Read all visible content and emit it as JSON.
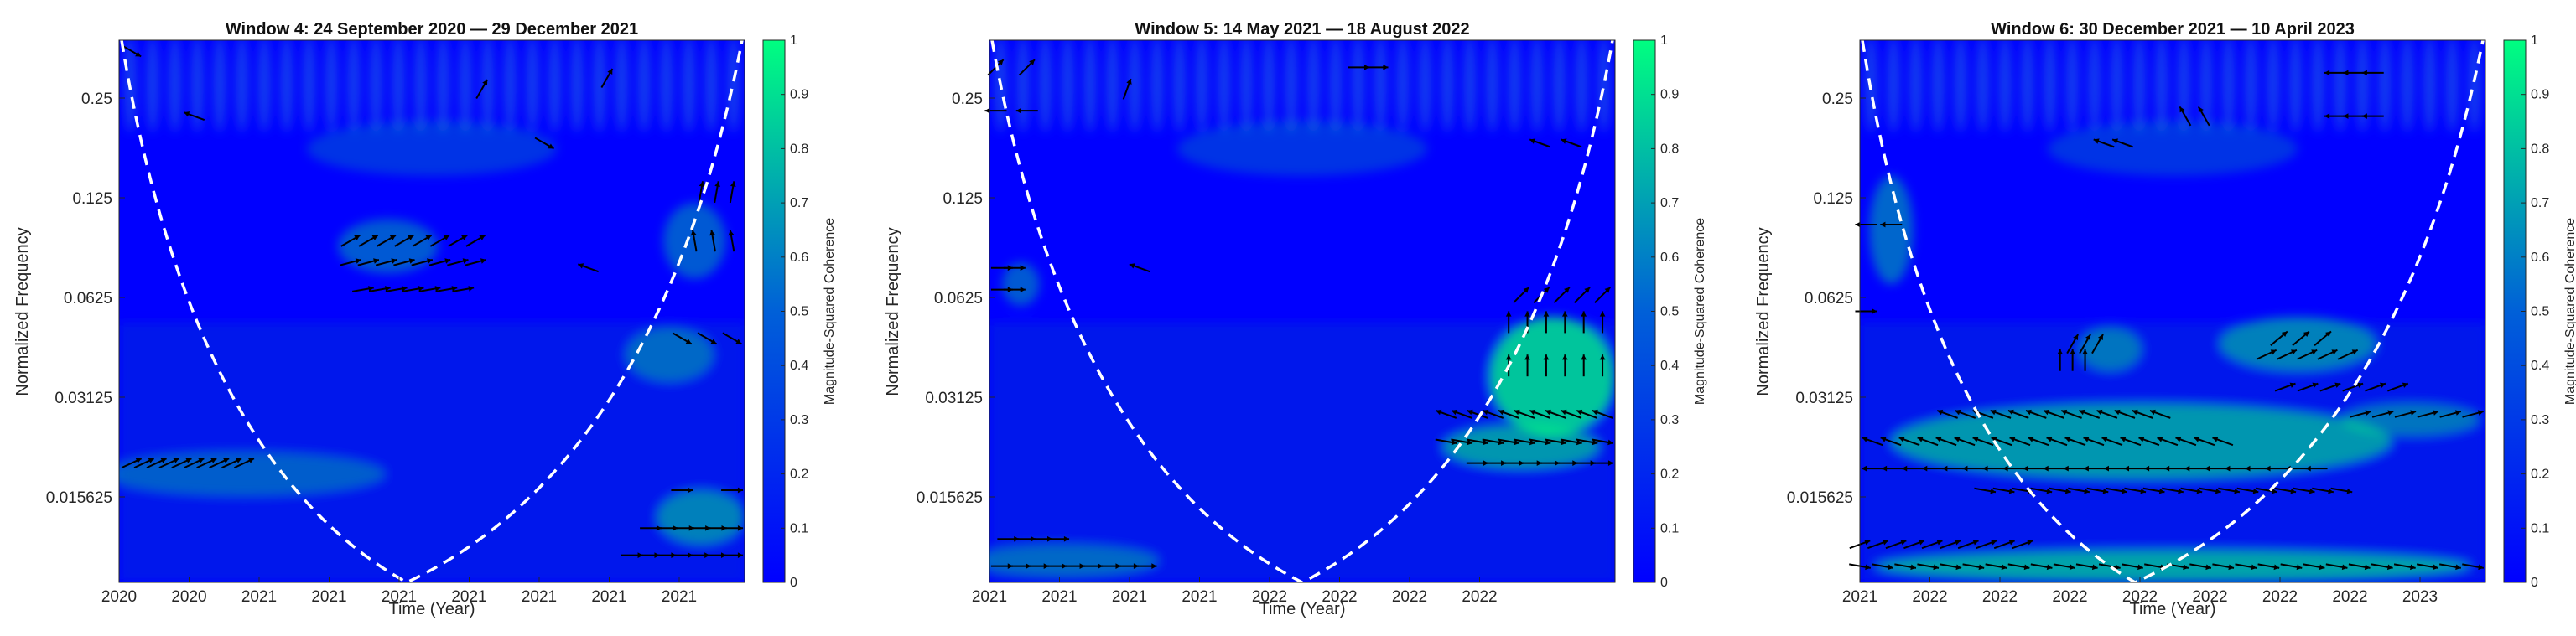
{
  "colors": {
    "low": "#0000ff",
    "high": "#00ff80",
    "coi": "#ffffff",
    "arrow": "#000000"
  },
  "chart_data": [
    {
      "type": "heatmap",
      "title": "Window 4: 24 September 2020 — 29 December 2021",
      "xlabel": "Time (Year)",
      "ylabel": "Normalized Frequency",
      "xticks": [
        "2020",
        "2020",
        "2021",
        "2021",
        "2021",
        "2021",
        "2021",
        "2021",
        "2021"
      ],
      "yticks": [
        "0.25",
        "0.125",
        "0.0625",
        "0.03125",
        "0.015625"
      ],
      "colorbar": {
        "label": "Magnitude-Squared Coherence",
        "ticks": [
          "0",
          "0.1",
          "0.2",
          "0.3",
          "0.4",
          "0.5",
          "0.6",
          "0.7",
          "0.8",
          "0.9",
          "1"
        ],
        "range": [
          0,
          1
        ]
      }
    },
    {
      "type": "heatmap",
      "title": "Window 5: 14 May 2021 — 18 August 2022",
      "xlabel": "Time (Year)",
      "ylabel": "Normalized Frequency",
      "xticks": [
        "2021",
        "2021",
        "2021",
        "2021",
        "2022",
        "2022",
        "2022",
        "2022"
      ],
      "yticks": [
        "0.25",
        "0.125",
        "0.0625",
        "0.03125",
        "0.015625"
      ],
      "colorbar": {
        "label": "Magnitude-Squared Coherence",
        "ticks": [
          "0",
          "0.1",
          "0.2",
          "0.3",
          "0.4",
          "0.5",
          "0.6",
          "0.7",
          "0.8",
          "0.9",
          "1"
        ],
        "range": [
          0,
          1
        ]
      }
    },
    {
      "type": "heatmap",
      "title": "Window 6: 30 December 2021 — 10 April 2023",
      "xlabel": "Time (Year)",
      "ylabel": "Normalized Frequency",
      "xticks": [
        "2021",
        "2022",
        "2022",
        "2022",
        "2022",
        "2022",
        "2022",
        "2022",
        "2023"
      ],
      "yticks": [
        "0.25",
        "0.125",
        "0.0625",
        "0.03125",
        "0.015625"
      ],
      "colorbar": {
        "label": "Magnitude-Squared Coherence",
        "ticks": [
          "0",
          "0.1",
          "0.2",
          "0.3",
          "0.4",
          "0.5",
          "0.6",
          "0.7",
          "0.8",
          "0.9",
          "1"
        ],
        "range": [
          0,
          1
        ]
      }
    }
  ]
}
